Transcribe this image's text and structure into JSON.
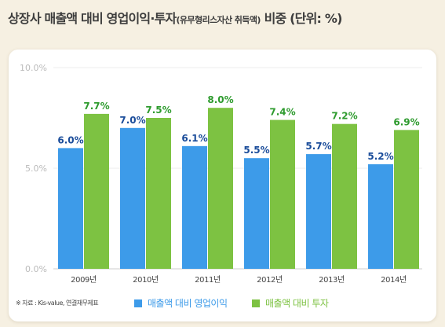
{
  "title": {
    "main": "상장사 매출액 대비 영업이익·투자",
    "sub": "(유무형리스자산 취득액)",
    "unit": "비중 (단위: %)"
  },
  "colors": {
    "operating_profit": "#3d9be9",
    "investment": "#7dc242",
    "op_label": "#1a4c9a",
    "inv_label": "#2e9b2e"
  },
  "chart_data": {
    "type": "bar",
    "categories": [
      "2009년",
      "2010년",
      "2011년",
      "2012년",
      "2013년",
      "2014년"
    ],
    "series": [
      {
        "name": "매출액 대비 영업이익",
        "values": [
          6.0,
          7.0,
          6.1,
          5.5,
          5.7,
          5.2
        ]
      },
      {
        "name": "매출액 대비 투자",
        "values": [
          7.7,
          7.5,
          8.0,
          7.4,
          7.2,
          6.9
        ]
      }
    ],
    "ylim": [
      0,
      10
    ],
    "yticks": [
      "0.0%",
      "5.0%",
      "10.0%"
    ],
    "value_format": "%",
    "grid": true,
    "legend": "bottom"
  },
  "source": "※ 자료 : Kis-value, 연결재무제표"
}
